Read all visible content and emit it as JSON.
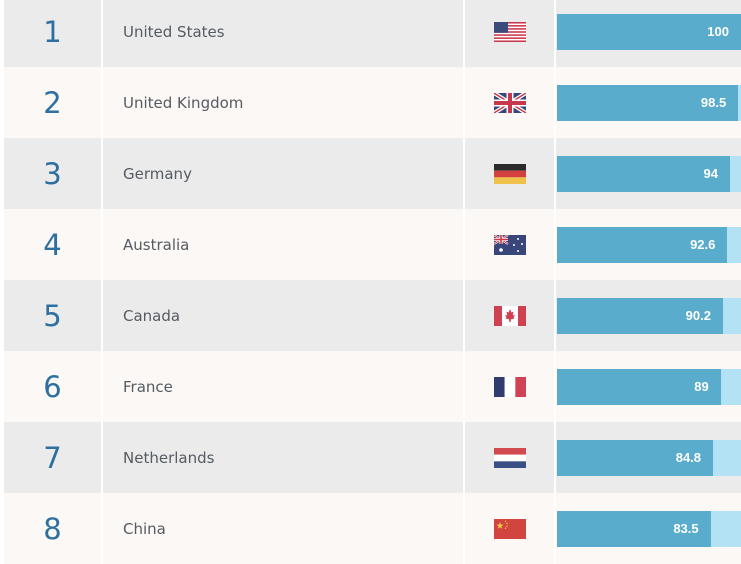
{
  "rankings": [
    {
      "rank": "1",
      "country": "United States",
      "flag": "us-flag-icon",
      "score": "100",
      "value": 100
    },
    {
      "rank": "2",
      "country": "United Kingdom",
      "flag": "uk-flag-icon",
      "score": "98.5",
      "value": 98.5
    },
    {
      "rank": "3",
      "country": "Germany",
      "flag": "germany-flag-icon",
      "score": "94",
      "value": 94
    },
    {
      "rank": "4",
      "country": "Australia",
      "flag": "australia-flag-icon",
      "score": "92.6",
      "value": 92.6
    },
    {
      "rank": "5",
      "country": "Canada",
      "flag": "canada-flag-icon",
      "score": "90.2",
      "value": 90.2
    },
    {
      "rank": "6",
      "country": "France",
      "flag": "france-flag-icon",
      "score": "89",
      "value": 89
    },
    {
      "rank": "7",
      "country": "Netherlands",
      "flag": "netherlands-flag-icon",
      "score": "84.8",
      "value": 84.8
    },
    {
      "rank": "8",
      "country": "China",
      "flag": "china-flag-icon",
      "score": "83.5",
      "value": 83.5
    }
  ],
  "colors": {
    "rank_text": "#2c6fa0",
    "bar_fill": "#5aaccc",
    "bar_track": "#b2e2f4",
    "row_odd": "#ebebeb",
    "row_even": "#fbf8f5"
  }
}
